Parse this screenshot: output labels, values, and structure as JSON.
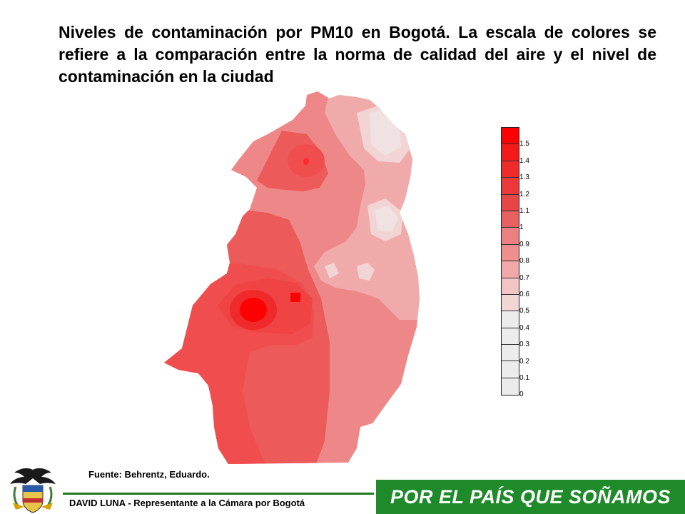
{
  "title": "Niveles de contaminación por PM10 en Bogotá.  La escala de colores se refiere a la comparación entre la norma de calidad del aire y el nivel de contaminación en la ciudad",
  "legend": {
    "labels": [
      "1.5",
      "1.4",
      "1.3",
      "1.2",
      "1.1",
      "1",
      "0.9",
      "0.8",
      "0.7",
      "0.6",
      "0.5",
      "0.4",
      "0.3",
      "0.2",
      "0.1",
      "0"
    ],
    "colors": [
      "#ff0000",
      "#f51a1a",
      "#f02a2a",
      "#ec3838",
      "#e84646",
      "#e86060",
      "#ec8080",
      "#ee8e8e",
      "#f0a8a8",
      "#f2c4c4",
      "#f2d6d6",
      "#ececec",
      "#ececec",
      "#ececec",
      "#ececec",
      "#ececec"
    ]
  },
  "map": {
    "region": "Bogotá",
    "level_colors": {
      "highest": "#ff0000",
      "high": "#f04e4e",
      "medium_high": "#ec5a5a",
      "medium": "#ee8888",
      "medium_low": "#f0aaaa",
      "low": "#f2d4d4",
      "lowest": "#f0e0e0"
    }
  },
  "source": "Fuente: Behrentz, Eduardo.",
  "footer": {
    "left_text": "DAVID LUNA - Representante a la Cámara por Bogotá",
    "slogan": "POR EL PAÍS QUE SOÑAMOS",
    "slogan_bg": "#1f8a2a"
  }
}
